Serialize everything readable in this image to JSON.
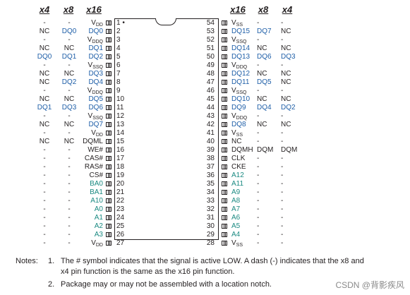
{
  "headers_left": [
    "x4",
    "x8",
    "x16"
  ],
  "headers_right": [
    "x16",
    "x8",
    "x4"
  ],
  "colors": {
    "blue": "#1f5fa8",
    "teal": "#1b8a82",
    "text": "#231f20"
  },
  "pins_left": [
    {
      "n": "1",
      "x16": "V",
      "x16_sub": "DD",
      "x8": "-",
      "x4": "-",
      "c16": "text",
      "c8": "text",
      "c4": "text",
      "dot": true
    },
    {
      "n": "2",
      "x16": "DQ0",
      "x8": "DQ0",
      "x4": "NC",
      "c16": "blue",
      "c8": "blue",
      "c4": "text"
    },
    {
      "n": "3",
      "x16": "V",
      "x16_sub": "DDQ",
      "x8": "-",
      "x4": "-",
      "c16": "text",
      "c8": "text",
      "c4": "text"
    },
    {
      "n": "4",
      "x16": "DQ1",
      "x8": "NC",
      "x4": "NC",
      "c16": "blue",
      "c8": "text",
      "c4": "text"
    },
    {
      "n": "5",
      "x16": "DQ2",
      "x8": "DQ1",
      "x4": "DQ0",
      "c16": "blue",
      "c8": "blue",
      "c4": "blue"
    },
    {
      "n": "6",
      "x16": "V",
      "x16_sub": "SSQ",
      "x8": "-",
      "x4": "-",
      "c16": "text",
      "c8": "text",
      "c4": "text"
    },
    {
      "n": "7",
      "x16": "DQ3",
      "x8": "NC",
      "x4": "NC",
      "c16": "blue",
      "c8": "text",
      "c4": "text"
    },
    {
      "n": "8",
      "x16": "DQ4",
      "x8": "DQ2",
      "x4": "NC",
      "c16": "blue",
      "c8": "blue",
      "c4": "text"
    },
    {
      "n": "9",
      "x16": "V",
      "x16_sub": "DDQ",
      "x8": "-",
      "x4": "-",
      "c16": "text",
      "c8": "text",
      "c4": "text"
    },
    {
      "n": "10",
      "x16": "DQ5",
      "x8": "NC",
      "x4": "NC",
      "c16": "blue",
      "c8": "text",
      "c4": "text"
    },
    {
      "n": "11",
      "x16": "DQ6",
      "x8": "DQ3",
      "x4": "DQ1",
      "c16": "blue",
      "c8": "blue",
      "c4": "blue"
    },
    {
      "n": "12",
      "x16": "V",
      "x16_sub": "SSQ",
      "x8": "-",
      "x4": "-",
      "c16": "text",
      "c8": "text",
      "c4": "text"
    },
    {
      "n": "13",
      "x16": "DQ7",
      "x8": "NC",
      "x4": "NC",
      "c16": "blue",
      "c8": "text",
      "c4": "text"
    },
    {
      "n": "14",
      "x16": "V",
      "x16_sub": "DD",
      "x8": "-",
      "x4": "-",
      "c16": "text",
      "c8": "text",
      "c4": "text"
    },
    {
      "n": "15",
      "x16": "DQML",
      "x8": "NC",
      "x4": "NC",
      "c16": "text",
      "c8": "text",
      "c4": "text"
    },
    {
      "n": "16",
      "x16": "WE#",
      "x8": "-",
      "x4": "-",
      "c16": "text",
      "c8": "text",
      "c4": "text"
    },
    {
      "n": "17",
      "x16": "CAS#",
      "x8": "-",
      "x4": "-",
      "c16": "text",
      "c8": "text",
      "c4": "text"
    },
    {
      "n": "18",
      "x16": "RAS#",
      "x8": "-",
      "x4": "-",
      "c16": "text",
      "c8": "text",
      "c4": "text"
    },
    {
      "n": "19",
      "x16": "CS#",
      "x8": "-",
      "x4": "-",
      "c16": "text",
      "c8": "text",
      "c4": "text"
    },
    {
      "n": "20",
      "x16": "BA0",
      "x8": "-",
      "x4": "-",
      "c16": "teal",
      "c8": "text",
      "c4": "text"
    },
    {
      "n": "21",
      "x16": "BA1",
      "x8": "-",
      "x4": "-",
      "c16": "teal",
      "c8": "text",
      "c4": "text"
    },
    {
      "n": "22",
      "x16": "A10",
      "x8": "-",
      "x4": "-",
      "c16": "teal",
      "c8": "text",
      "c4": "text"
    },
    {
      "n": "23",
      "x16": "A0",
      "x8": "-",
      "x4": "-",
      "c16": "teal",
      "c8": "text",
      "c4": "text"
    },
    {
      "n": "24",
      "x16": "A1",
      "x8": "-",
      "x4": "-",
      "c16": "teal",
      "c8": "text",
      "c4": "text"
    },
    {
      "n": "25",
      "x16": "A2",
      "x8": "-",
      "x4": "-",
      "c16": "teal",
      "c8": "text",
      "c4": "text"
    },
    {
      "n": "26",
      "x16": "A3",
      "x8": "-",
      "x4": "-",
      "c16": "teal",
      "c8": "text",
      "c4": "text"
    },
    {
      "n": "27",
      "x16": "V",
      "x16_sub": "DD",
      "x8": "-",
      "x4": "-",
      "c16": "text",
      "c8": "text",
      "c4": "text"
    }
  ],
  "pins_right": [
    {
      "n": "54",
      "x16": "V",
      "x16_sub": "SS",
      "x8": "-",
      "x4": "-",
      "c16": "text",
      "c8": "text",
      "c4": "text"
    },
    {
      "n": "53",
      "x16": "DQ15",
      "x8": "DQ7",
      "x4": "NC",
      "c16": "blue",
      "c8": "blue",
      "c4": "text"
    },
    {
      "n": "52",
      "x16": "V",
      "x16_sub": "SSQ",
      "x8": "-",
      "x4": "-",
      "c16": "text",
      "c8": "text",
      "c4": "text"
    },
    {
      "n": "51",
      "x16": "DQ14",
      "x8": "NC",
      "x4": "NC",
      "c16": "blue",
      "c8": "text",
      "c4": "text"
    },
    {
      "n": "50",
      "x16": "DQ13",
      "x8": "DQ6",
      "x4": "DQ3",
      "c16": "blue",
      "c8": "blue",
      "c4": "blue"
    },
    {
      "n": "49",
      "x16": "V",
      "x16_sub": "DDQ",
      "x8": "-",
      "x4": "-",
      "c16": "text",
      "c8": "text",
      "c4": "text"
    },
    {
      "n": "48",
      "x16": "DQ12",
      "x8": "NC",
      "x4": "NC",
      "c16": "blue",
      "c8": "text",
      "c4": "text"
    },
    {
      "n": "47",
      "x16": "DQ11",
      "x8": "DQ5",
      "x4": "NC",
      "c16": "blue",
      "c8": "blue",
      "c4": "text"
    },
    {
      "n": "46",
      "x16": "V",
      "x16_sub": "SSQ",
      "x8": "-",
      "x4": "-",
      "c16": "text",
      "c8": "text",
      "c4": "text"
    },
    {
      "n": "45",
      "x16": "DQ10",
      "x8": "NC",
      "x4": "NC",
      "c16": "blue",
      "c8": "text",
      "c4": "text"
    },
    {
      "n": "44",
      "x16": "DQ9",
      "x8": "DQ4",
      "x4": "DQ2",
      "c16": "blue",
      "c8": "blue",
      "c4": "blue"
    },
    {
      "n": "43",
      "x16": "V",
      "x16_sub": "DDQ",
      "x8": "-",
      "x4": "-",
      "c16": "text",
      "c8": "text",
      "c4": "text"
    },
    {
      "n": "42",
      "x16": "DQ8",
      "x8": "NC",
      "x4": "NC",
      "c16": "blue",
      "c8": "text",
      "c4": "text"
    },
    {
      "n": "41",
      "x16": "V",
      "x16_sub": "SS",
      "x8": "-",
      "x4": "-",
      "c16": "text",
      "c8": "text",
      "c4": "text"
    },
    {
      "n": "40",
      "x16": "NC",
      "x8": "-",
      "x4": "-",
      "c16": "text",
      "c8": "text",
      "c4": "text"
    },
    {
      "n": "39",
      "x16": "DQMH",
      "x8": "DQM",
      "x4": "DQM",
      "c16": "text",
      "c8": "text",
      "c4": "text"
    },
    {
      "n": "38",
      "x16": "CLK",
      "x8": "-",
      "x4": "-",
      "c16": "text",
      "c8": "text",
      "c4": "text"
    },
    {
      "n": "37",
      "x16": "CKE",
      "x8": "-",
      "x4": "-",
      "c16": "text",
      "c8": "text",
      "c4": "text"
    },
    {
      "n": "36",
      "x16": "A12",
      "x8": "-",
      "x4": "-",
      "c16": "teal",
      "c8": "text",
      "c4": "text"
    },
    {
      "n": "35",
      "x16": "A11",
      "x8": "-",
      "x4": "-",
      "c16": "teal",
      "c8": "text",
      "c4": "text"
    },
    {
      "n": "34",
      "x16": "A9",
      "x8": "-",
      "x4": "-",
      "c16": "teal",
      "c8": "text",
      "c4": "text"
    },
    {
      "n": "33",
      "x16": "A8",
      "x8": "-",
      "x4": "-",
      "c16": "teal",
      "c8": "text",
      "c4": "text"
    },
    {
      "n": "32",
      "x16": "A7",
      "x8": "-",
      "x4": "-",
      "c16": "teal",
      "c8": "text",
      "c4": "text"
    },
    {
      "n": "31",
      "x16": "A6",
      "x8": "-",
      "x4": "-",
      "c16": "teal",
      "c8": "text",
      "c4": "text"
    },
    {
      "n": "30",
      "x16": "A5",
      "x8": "-",
      "x4": "-",
      "c16": "teal",
      "c8": "text",
      "c4": "text"
    },
    {
      "n": "29",
      "x16": "A4",
      "x8": "-",
      "x4": "-",
      "c16": "teal",
      "c8": "text",
      "c4": "text"
    },
    {
      "n": "28",
      "x16": "V",
      "x16_sub": "SS",
      "x8": "-",
      "x4": "-",
      "c16": "text",
      "c8": "text",
      "c4": "text"
    }
  ],
  "notes": {
    "label": "Notes:",
    "items": [
      {
        "num": "1.",
        "text1": "The # symbol indicates that the signal is active LOW. A dash (-) indicates that the x8 and",
        "text2": "x4 pin function is the same as the x16 pin function."
      },
      {
        "num": "2.",
        "text1": "Package may or may not be assembled with a location notch.",
        "text2": ""
      }
    ]
  },
  "watermark": "CSDN @背影疾风"
}
